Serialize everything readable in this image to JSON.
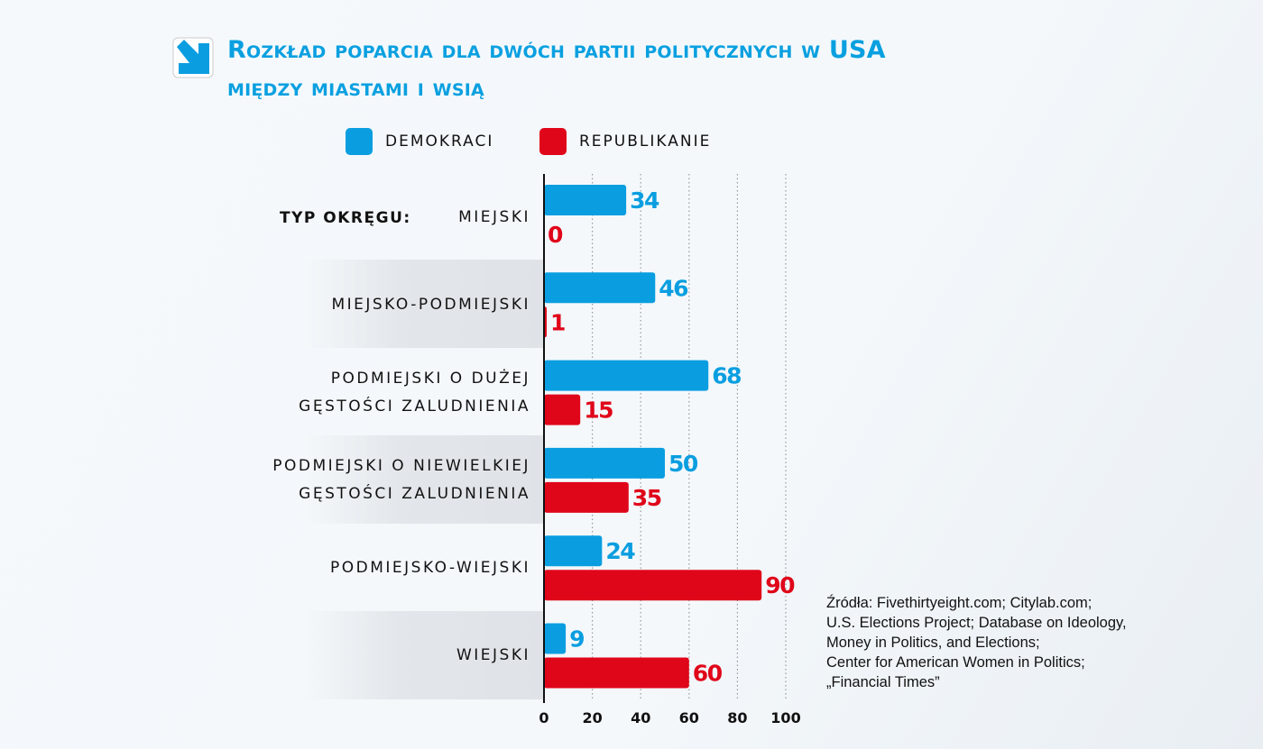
{
  "chart_data": {
    "type": "bar",
    "orientation": "horizontal",
    "title": "Rozkład poparcia dla dwóch partii politycznych w USA",
    "subtitle": "między miastami i wsią",
    "category_axis_label": "TYP OKRĘGU:",
    "categories": [
      [
        "MIEJSKI"
      ],
      [
        "MIEJSKO-PODMIEJSKI"
      ],
      [
        "PODMIEJSKI O DUŻEJ",
        "GĘSTOŚCI ZALUDNIENIA"
      ],
      [
        "PODMIEJSKI O NIEWIELKIEJ",
        "GĘSTOŚCI ZALUDNIENIA"
      ],
      [
        "PODMIEJSKO-WIEJSKI"
      ],
      [
        "WIEJSKI"
      ]
    ],
    "series": [
      {
        "name": "DEMOKRACI",
        "color": "#0a9ee0",
        "values": [
          34,
          46,
          68,
          50,
          24,
          9
        ]
      },
      {
        "name": "REPUBLIKANIE",
        "color": "#e0061a",
        "values": [
          0,
          1,
          15,
          35,
          90,
          60
        ]
      }
    ],
    "xlim": [
      0,
      100
    ],
    "xticks": [
      "0",
      "20",
      "40",
      "60",
      "80",
      "100"
    ],
    "grid": "vertical dotted",
    "legend_placement": "top",
    "source": [
      "Źródła: Fivethirtyeight.com; Citylab.com;",
      "U.S. Elections Project; Database on Ideology,",
      "Money in Politics, and Elections;",
      "Center for American Women in Politics;",
      "„Financial Times”"
    ]
  },
  "icons": {
    "title_icon": "arrow-down-right-icon"
  }
}
